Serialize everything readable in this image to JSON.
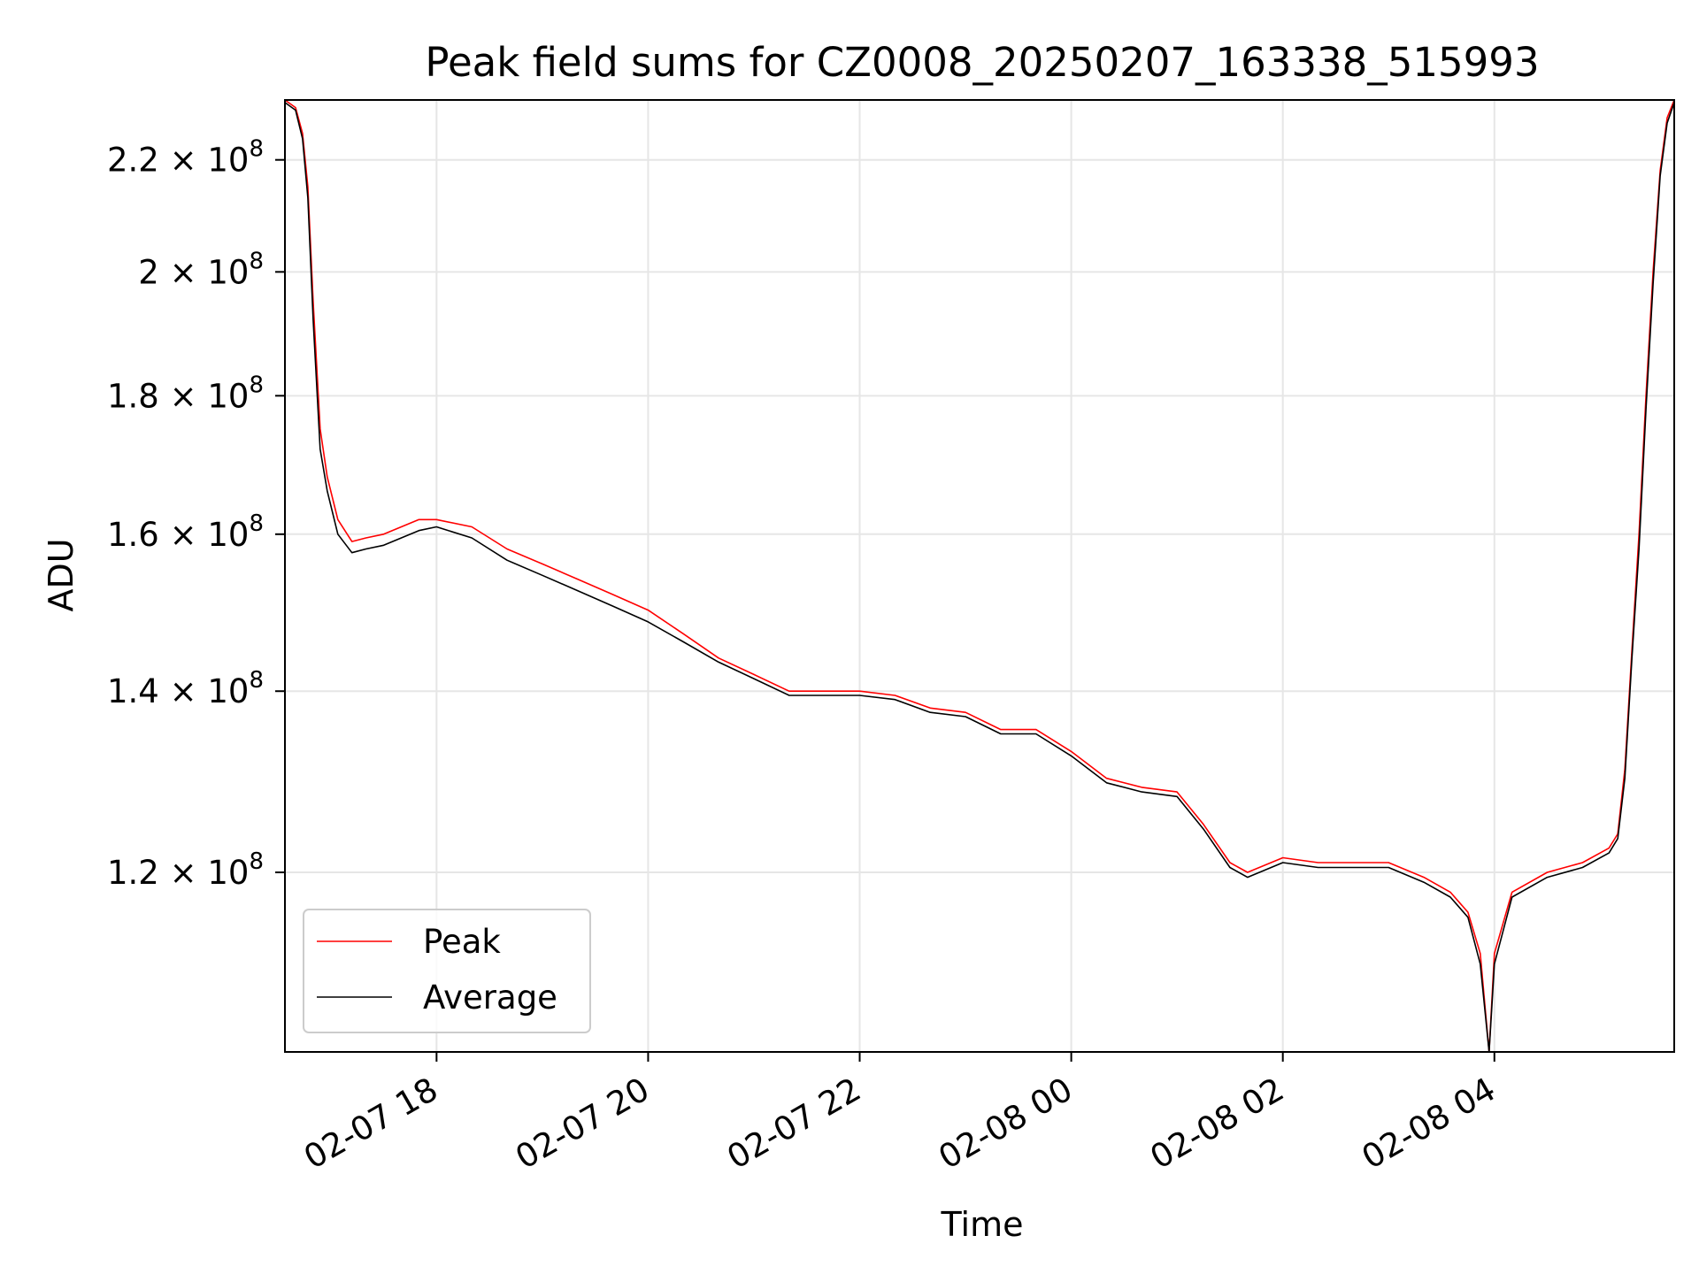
{
  "chart_data": {
    "type": "line",
    "title": "Peak field sums for CZ0008_20250207_163338_515993",
    "xlabel": "Time",
    "ylabel": "ADU",
    "y_scale": "log",
    "ylim": [
      103000000,
      231500000
    ],
    "x_range": [
      "2025-02-07 16:34",
      "2025-02-08 05:42"
    ],
    "grid": true,
    "legend_location": "lower left",
    "x_ticks": [
      {
        "t": "2025-02-07 18:00",
        "label": "02-07 18"
      },
      {
        "t": "2025-02-07 20:00",
        "label": "02-07 20"
      },
      {
        "t": "2025-02-07 22:00",
        "label": "02-07 22"
      },
      {
        "t": "2025-02-08 00:00",
        "label": "02-08 00"
      },
      {
        "t": "2025-02-08 02:00",
        "label": "02-08 02"
      },
      {
        "t": "2025-02-08 04:00",
        "label": "02-08 04"
      }
    ],
    "y_ticks": [
      {
        "value": 120000000,
        "mantissa": "1.2",
        "exponent": "8"
      },
      {
        "value": 140000000,
        "mantissa": "1.4",
        "exponent": "8"
      },
      {
        "value": 160000000,
        "mantissa": "1.6",
        "exponent": "8"
      },
      {
        "value": 180000000,
        "mantissa": "1.8",
        "exponent": "8"
      },
      {
        "value": 200000000,
        "mantissa": "2",
        "exponent": "8"
      },
      {
        "value": 220000000,
        "mantissa": "2.2",
        "exponent": "8"
      }
    ],
    "series": [
      {
        "name": "Peak",
        "color": "#ff0000",
        "x": [
          "2025-02-07 16:34",
          "2025-02-07 16:40",
          "2025-02-07 16:44",
          "2025-02-07 16:47",
          "2025-02-07 16:50",
          "2025-02-07 16:54",
          "2025-02-07 16:58",
          "2025-02-07 17:04",
          "2025-02-07 17:12",
          "2025-02-07 17:20",
          "2025-02-07 17:30",
          "2025-02-07 17:40",
          "2025-02-07 17:50",
          "2025-02-07 18:00",
          "2025-02-07 18:20",
          "2025-02-07 18:40",
          "2025-02-07 19:00",
          "2025-02-07 19:20",
          "2025-02-07 19:40",
          "2025-02-07 20:00",
          "2025-02-07 20:20",
          "2025-02-07 20:40",
          "2025-02-07 21:00",
          "2025-02-07 21:20",
          "2025-02-07 21:40",
          "2025-02-07 22:00",
          "2025-02-07 22:20",
          "2025-02-07 22:40",
          "2025-02-07 23:00",
          "2025-02-07 23:20",
          "2025-02-07 23:40",
          "2025-02-08 00:00",
          "2025-02-08 00:20",
          "2025-02-08 00:40",
          "2025-02-08 01:00",
          "2025-02-08 01:15",
          "2025-02-08 01:30",
          "2025-02-08 01:40",
          "2025-02-08 02:00",
          "2025-02-08 02:20",
          "2025-02-08 02:40",
          "2025-02-08 03:00",
          "2025-02-08 03:20",
          "2025-02-08 03:35",
          "2025-02-08 03:45",
          "2025-02-08 03:52",
          "2025-02-08 03:57",
          "2025-02-08 04:00",
          "2025-02-08 04:10",
          "2025-02-08 04:30",
          "2025-02-08 04:50",
          "2025-02-08 05:05",
          "2025-02-08 05:10",
          "2025-02-08 05:14",
          "2025-02-08 05:18",
          "2025-02-08 05:22",
          "2025-02-08 05:26",
          "2025-02-08 05:30",
          "2025-02-08 05:34",
          "2025-02-08 05:38",
          "2025-02-08 05:42"
        ],
        "values": [
          231500000,
          230000000,
          225000000,
          215000000,
          195000000,
          175000000,
          168000000,
          162000000,
          159000000,
          159500000,
          160000000,
          161000000,
          162000000,
          162000000,
          161000000,
          158000000,
          156000000,
          154000000,
          152000000,
          150000000,
          147000000,
          144000000,
          142000000,
          140000000,
          140000000,
          140000000,
          139500000,
          138000000,
          137500000,
          135500000,
          135500000,
          133000000,
          130000000,
          129000000,
          128500000,
          125000000,
          121000000,
          120000000,
          121500000,
          121000000,
          121000000,
          121000000,
          119500000,
          118000000,
          116000000,
          112000000,
          103000000,
          112000000,
          118000000,
          120000000,
          121000000,
          122500000,
          124000000,
          131000000,
          145000000,
          160000000,
          180000000,
          200000000,
          218000000,
          228000000,
          231500000
        ]
      },
      {
        "name": "Average",
        "color": "#000000",
        "x": [
          "2025-02-07 16:34",
          "2025-02-07 16:40",
          "2025-02-07 16:44",
          "2025-02-07 16:47",
          "2025-02-07 16:50",
          "2025-02-07 16:54",
          "2025-02-07 16:58",
          "2025-02-07 17:04",
          "2025-02-07 17:12",
          "2025-02-07 17:20",
          "2025-02-07 17:30",
          "2025-02-07 17:40",
          "2025-02-07 17:50",
          "2025-02-07 18:00",
          "2025-02-07 18:20",
          "2025-02-07 18:40",
          "2025-02-07 19:00",
          "2025-02-07 19:20",
          "2025-02-07 19:40",
          "2025-02-07 20:00",
          "2025-02-07 20:20",
          "2025-02-07 20:40",
          "2025-02-07 21:00",
          "2025-02-07 21:20",
          "2025-02-07 21:40",
          "2025-02-07 22:00",
          "2025-02-07 22:20",
          "2025-02-07 22:40",
          "2025-02-07 23:00",
          "2025-02-07 23:20",
          "2025-02-07 23:40",
          "2025-02-08 00:00",
          "2025-02-08 00:20",
          "2025-02-08 00:40",
          "2025-02-08 01:00",
          "2025-02-08 01:15",
          "2025-02-08 01:30",
          "2025-02-08 01:40",
          "2025-02-08 02:00",
          "2025-02-08 02:20",
          "2025-02-08 02:40",
          "2025-02-08 03:00",
          "2025-02-08 03:20",
          "2025-02-08 03:35",
          "2025-02-08 03:45",
          "2025-02-08 03:52",
          "2025-02-08 03:57",
          "2025-02-08 04:00",
          "2025-02-08 04:10",
          "2025-02-08 04:30",
          "2025-02-08 04:50",
          "2025-02-08 05:05",
          "2025-02-08 05:10",
          "2025-02-08 05:14",
          "2025-02-08 05:18",
          "2025-02-08 05:22",
          "2025-02-08 05:26",
          "2025-02-08 05:30",
          "2025-02-08 05:34",
          "2025-02-08 05:38",
          "2025-02-08 05:42"
        ],
        "values": [
          231000000,
          229500000,
          224000000,
          213000000,
          192000000,
          172000000,
          166000000,
          160000000,
          157500000,
          158000000,
          158500000,
          159500000,
          160500000,
          161000000,
          159500000,
          156500000,
          154500000,
          152500000,
          150500000,
          148500000,
          146000000,
          143500000,
          141500000,
          139500000,
          139500000,
          139500000,
          139000000,
          137500000,
          137000000,
          135000000,
          135000000,
          132500000,
          129500000,
          128500000,
          128000000,
          124500000,
          120500000,
          119500000,
          121000000,
          120500000,
          120500000,
          120500000,
          119000000,
          117500000,
          115500000,
          111000000,
          103000000,
          111000000,
          117500000,
          119500000,
          120500000,
          122000000,
          123500000,
          130000000,
          144000000,
          158000000,
          178000000,
          198000000,
          217000000,
          227000000,
          231000000
        ]
      }
    ]
  }
}
